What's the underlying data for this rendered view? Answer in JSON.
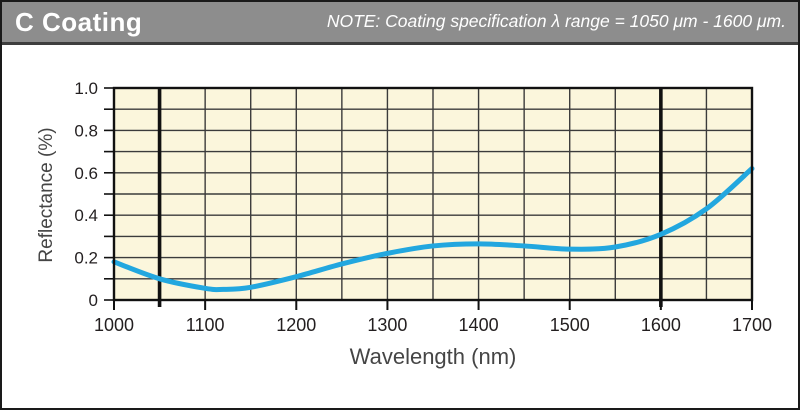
{
  "header": {
    "title": "C Coating",
    "note": "NOTE: Coating specification λ range = 1050 μm - 1600 μm."
  },
  "colors": {
    "header_bg": "#8d8d8d",
    "header_divider": "#3e3e3e",
    "header_text": "#ffffff",
    "plot_bg": "#fbf6dc",
    "grid": "#3b3b3b",
    "frame": "#111111",
    "curve": "#22a7df",
    "tick_label": "#231f20",
    "axis_title": "#454545"
  },
  "chart_data": {
    "type": "line",
    "title": "C Coating",
    "xlabel": "Wavelength (nm)",
    "ylabel": "Reflectance (%)",
    "xlim": [
      1000,
      1700
    ],
    "ylim": [
      0,
      1.0
    ],
    "x_tick_values": [
      1000,
      1100,
      1200,
      1300,
      1400,
      1500,
      1600,
      1700
    ],
    "x_tick_labels": [
      "1000",
      "1100",
      "1200",
      "1300",
      "1400",
      "1500",
      "1600",
      "1700"
    ],
    "x_minor_step": 50,
    "y_tick_values": [
      0,
      0.2,
      0.4,
      0.6,
      0.8,
      1.0
    ],
    "y_tick_labels": [
      "0",
      "0.2",
      "0.4",
      "0.6",
      "0.8",
      "1.0"
    ],
    "y_minor_step": 0.1,
    "grid": true,
    "legend_position": "none",
    "spec_lines_x": [
      1050,
      1600
    ],
    "series": [
      {
        "name": "C coating reflectance",
        "x": [
          1000,
          1050,
          1100,
          1120,
          1150,
          1200,
          1250,
          1300,
          1350,
          1400,
          1450,
          1500,
          1550,
          1600,
          1650,
          1700
        ],
        "y": [
          0.18,
          0.1,
          0.055,
          0.05,
          0.06,
          0.11,
          0.17,
          0.22,
          0.255,
          0.265,
          0.255,
          0.24,
          0.25,
          0.31,
          0.43,
          0.62
        ]
      }
    ]
  }
}
